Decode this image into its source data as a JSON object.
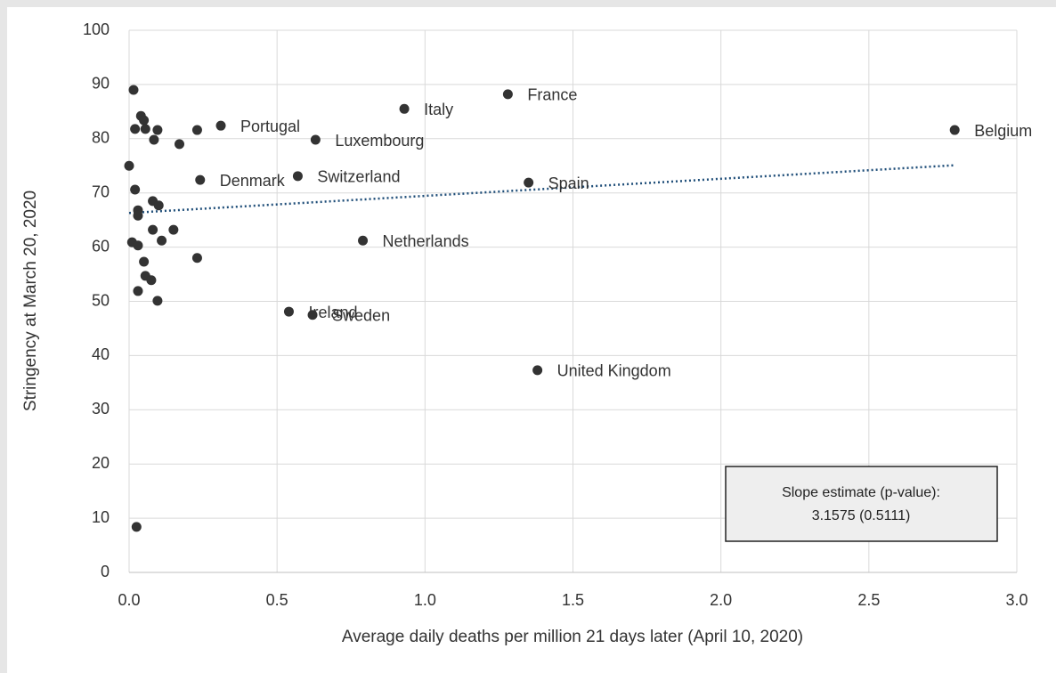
{
  "chart_data": {
    "type": "scatter",
    "x_label": "Average daily deaths per million 21 days later (April 10, 2020)",
    "y_label": "Stringency at March 20, 2020",
    "x": [
      2.79,
      1.28,
      0.93,
      0.63,
      0.31,
      0.57,
      0.24,
      1.35,
      0.79,
      0.54,
      0.62,
      1.38,
      0.015,
      0.04,
      0.05,
      0.02,
      0.055,
      0.096,
      0.084,
      0.17,
      0.23,
      0.0,
      0.02,
      0.03,
      0.03,
      0.08,
      0.1,
      0.08,
      0.15,
      0.11,
      0.01,
      0.03,
      0.05,
      0.055,
      0.075,
      0.03,
      0.096,
      0.23,
      0.025
    ],
    "y": [
      81.6,
      88.2,
      85.5,
      79.8,
      82.4,
      73.1,
      72.4,
      71.9,
      61.2,
      48.1,
      47.5,
      37.3,
      89.0,
      84.2,
      83.4,
      81.8,
      81.8,
      81.6,
      79.8,
      79.0,
      81.6,
      75.0,
      70.6,
      66.8,
      65.8,
      68.5,
      67.7,
      63.2,
      63.2,
      61.2,
      60.9,
      60.3,
      57.3,
      54.7,
      53.9,
      51.9,
      50.1,
      58.0,
      8.4
    ],
    "labels": [
      "Belgium",
      "France",
      "Italy",
      "Luxembourg",
      "Portugal",
      "Switzerland",
      "Denmark",
      "Spain",
      "Netherlands",
      "Ireland",
      "Sweden",
      "United Kingdom",
      null,
      null,
      null,
      null,
      null,
      null,
      null,
      null,
      null,
      null,
      null,
      null,
      null,
      null,
      null,
      null,
      null,
      null,
      null,
      null,
      null,
      null,
      null,
      null,
      null,
      null,
      null
    ],
    "color": "#333333",
    "trendline": {
      "x": [
        0,
        2.79
      ],
      "y": [
        66.3,
        75.1
      ],
      "color": "#1f4e79"
    },
    "annotation": [
      "Slope estimate (p-value):",
      "3.1575 (0.5111)"
    ],
    "xlim": [
      0,
      3
    ],
    "ylim": [
      0,
      100
    ],
    "xticks": [
      {
        "value": 0,
        "label": "0.0"
      },
      0.5,
      {
        "value": 1,
        "label": "1.0"
      },
      1.5,
      {
        "value": 2,
        "label": "2.0"
      },
      2.5,
      {
        "value": 3,
        "label": "3.0"
      }
    ],
    "yticks": [
      0,
      10,
      20,
      30,
      40,
      50,
      60,
      70,
      80,
      90,
      100
    ],
    "grid": true
  }
}
